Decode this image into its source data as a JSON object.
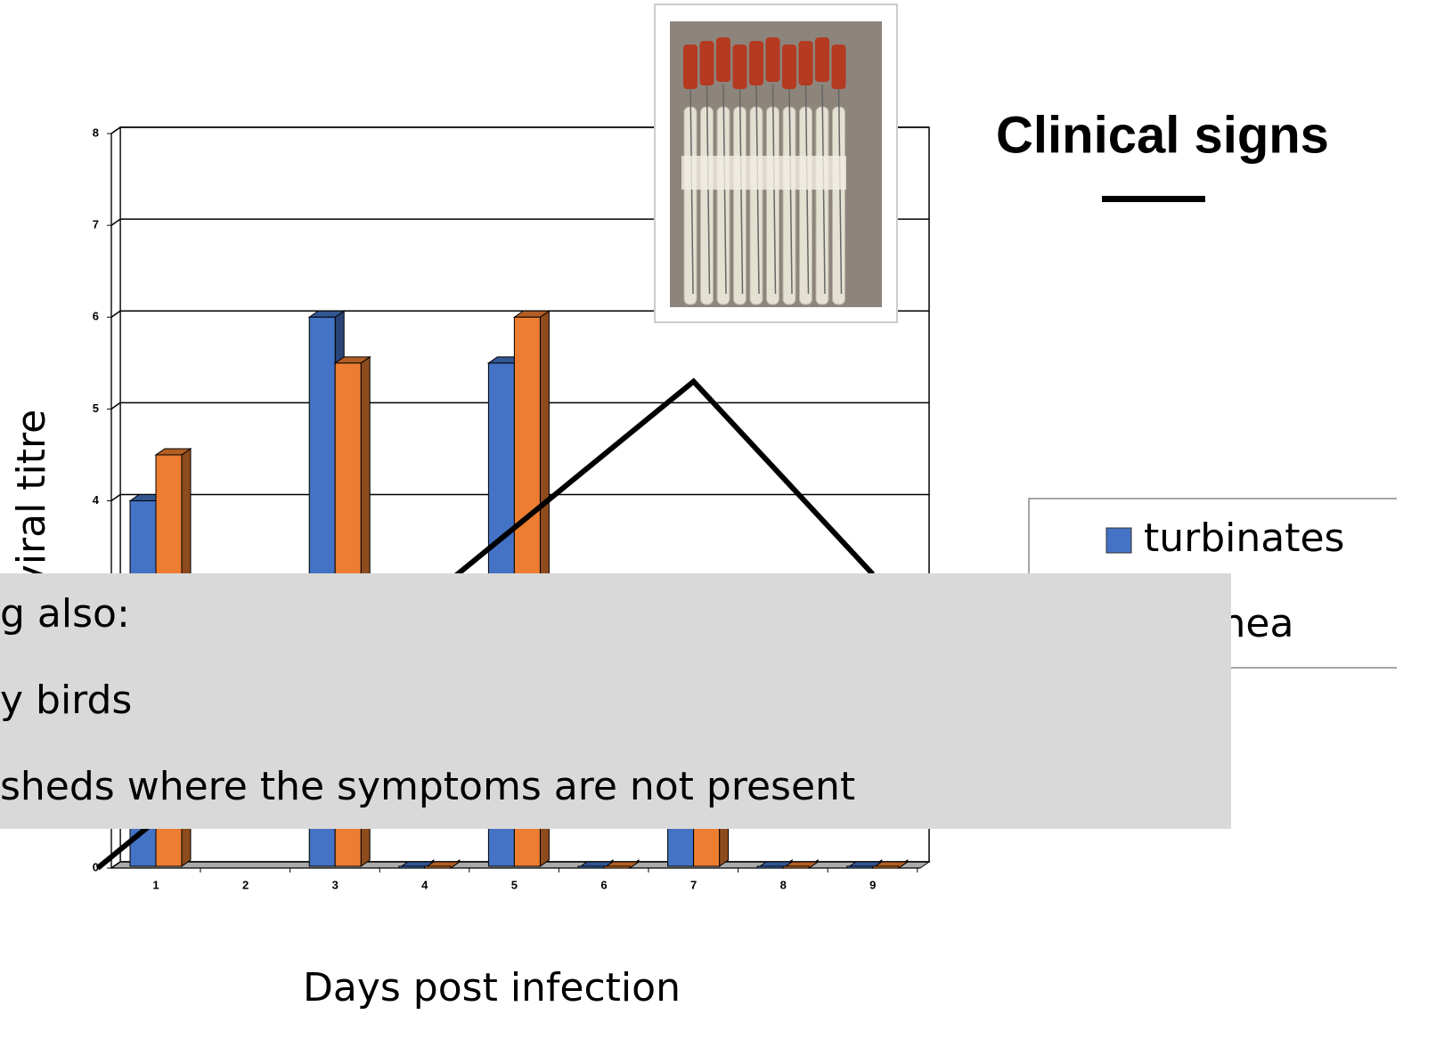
{
  "chart_data": {
    "type": "bar3d",
    "y_axis_label": "viral titre",
    "x_axis_label": "Days post infection",
    "categories": [
      "1",
      "2",
      "3",
      "4",
      "5",
      "6",
      "7",
      "8",
      "9"
    ],
    "series": [
      {
        "name": "turbinates",
        "color": "#4472c4",
        "values": [
          4,
          null,
          6,
          0,
          5.5,
          0,
          3,
          0,
          0
        ]
      },
      {
        "name": "trachea",
        "color": "#ed7d31",
        "values": [
          4.5,
          null,
          5.5,
          0,
          6,
          0,
          3,
          0,
          0
        ]
      }
    ],
    "overlay_line": {
      "color": "#000000",
      "x": [
        0.35,
        7,
        9
      ],
      "values": [
        0,
        5.3,
        3.2
      ]
    },
    "ylim": [
      0,
      8
    ],
    "yticks": [
      0,
      1,
      2,
      3,
      4,
      5,
      6,
      7,
      8
    ],
    "grid": true
  },
  "slide": {
    "title": "Clinical signs",
    "bullets": [
      "g also:",
      "y birds",
      "sheds where the symptoms are not present"
    ]
  }
}
